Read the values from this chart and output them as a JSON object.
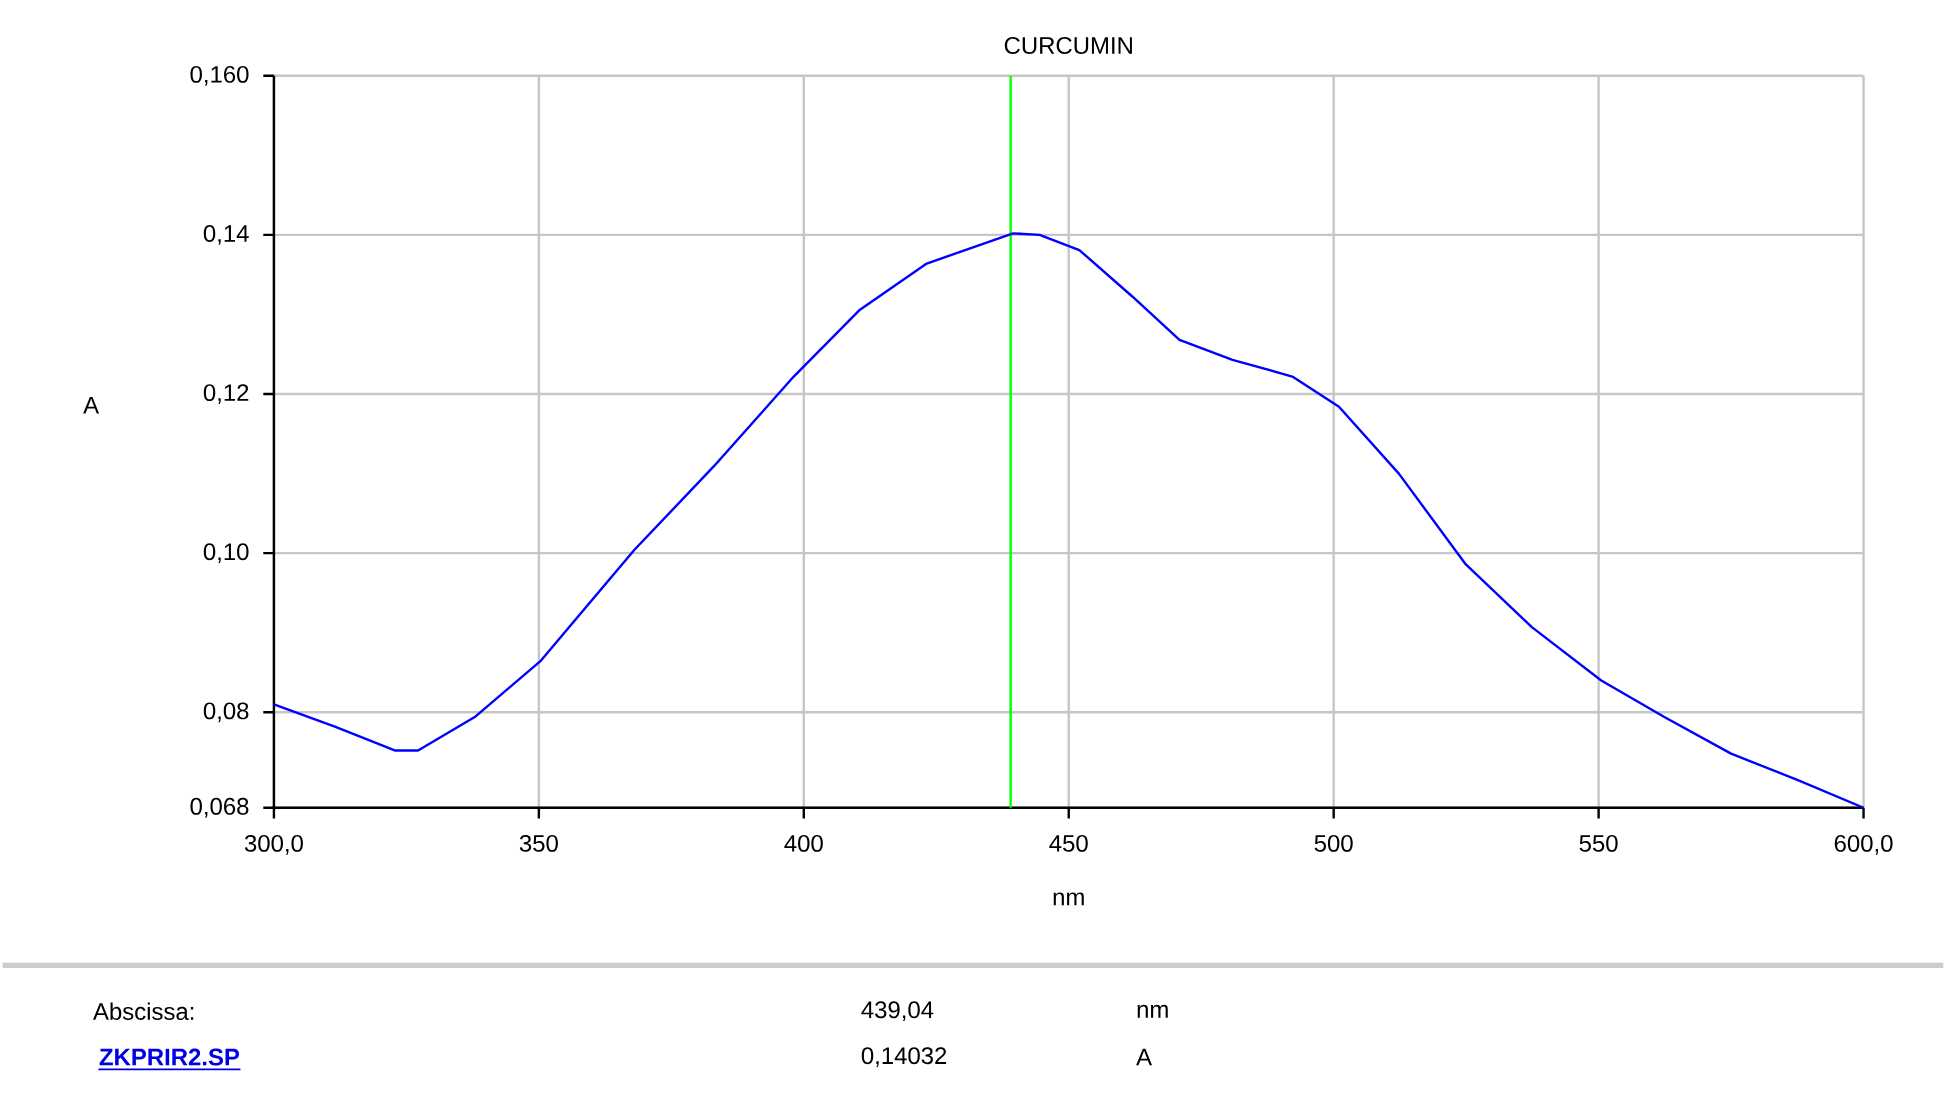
{
  "chart_data": {
    "type": "line",
    "title": "CURCUMIN",
    "xlabel": "nm",
    "ylabel": "A",
    "xlim": [
      300,
      600
    ],
    "ylim": [
      0.068,
      0.16
    ],
    "xticks": [
      {
        "value": 300,
        "label": "300,0"
      },
      350,
      400,
      450,
      500,
      550,
      {
        "value": 600,
        "label": "600,0"
      }
    ],
    "yticks": [
      {
        "value": 0.068,
        "label": "0,068"
      },
      {
        "value": 0.08,
        "label": "0,08"
      },
      {
        "value": 0.1,
        "label": "0,10"
      },
      {
        "value": 0.12,
        "label": "0,12"
      },
      {
        "value": 0.14,
        "label": "0,14"
      },
      {
        "value": 0.16,
        "label": "0,160"
      }
    ],
    "grid": true,
    "marker": "none",
    "line_style": "solid",
    "series": [
      {
        "color": "#0000ff",
        "x": [
          300,
          311.5,
          322.8,
          327.2,
          337.9,
          350.4,
          368,
          383,
          398.1,
          410.6,
          423.2,
          439.5,
          444.5,
          452,
          462.1,
          470.9,
          480.9,
          492.2,
          501,
          512.3,
          524.8,
          537.4,
          550.5,
          562.4,
          575,
          587.5,
          600
        ],
        "values": [
          0.081,
          0.0782,
          0.0752,
          0.0752,
          0.0794,
          0.0865,
          0.1004,
          0.1109,
          0.1222,
          0.1306,
          0.1364,
          0.1402,
          0.14,
          0.1381,
          0.1322,
          0.1268,
          0.1243,
          0.1222,
          0.1184,
          0.11,
          0.0987,
          0.0907,
          0.084,
          0.0794,
          0.0748,
          0.0715,
          0.068
        ]
      }
    ],
    "ref_lines": [
      {
        "axis": "x",
        "value": 439.04,
        "color": "#00ff00"
      }
    ],
    "annotations": [
      "Abscissa:",
      "439,04",
      "nm",
      "ZKPRIR2.SP",
      "0,14032",
      "A"
    ]
  }
}
